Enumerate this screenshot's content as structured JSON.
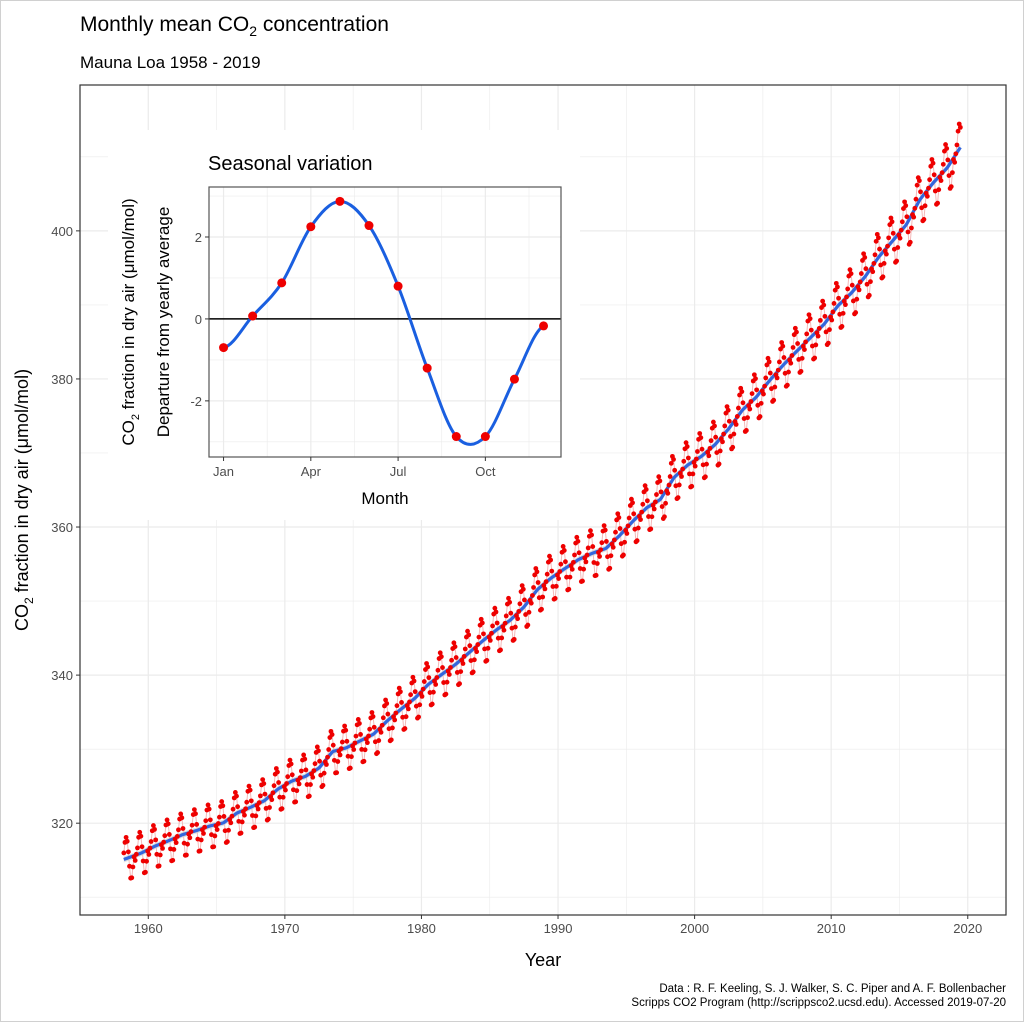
{
  "chart_data": [
    {
      "type": "scatter",
      "title": {
        "pre": "Monthly mean CO",
        "sub": "2",
        "post": " concentration"
      },
      "subtitle": "Mauna Loa 1958 - 2019",
      "xlabel": "Year",
      "ylabel": {
        "pre": "CO",
        "sub": "2",
        "post": " fraction in dry air (μmol/mol)"
      },
      "xlim": [
        1955,
        2022.8
      ],
      "ylim": [
        307.6,
        419.7
      ],
      "x_ticks": [
        1960,
        1970,
        1980,
        1990,
        2000,
        2010,
        2020
      ],
      "x_tick_labels": [
        "1960",
        "1970",
        "1980",
        "1990",
        "2000",
        "2010",
        "2020"
      ],
      "y_ticks": [
        320,
        340,
        360,
        380,
        400
      ],
      "y_tick_labels": [
        "320",
        "340",
        "360",
        "380",
        "400"
      ],
      "grid": true,
      "data_range": {
        "start": "1958-03",
        "end": "2019-06"
      },
      "annual_mean": {
        "years": [
          1958,
          1959,
          1960,
          1961,
          1962,
          1963,
          1964,
          1965,
          1966,
          1967,
          1968,
          1969,
          1970,
          1971,
          1972,
          1973,
          1974,
          1975,
          1976,
          1977,
          1978,
          1979,
          1980,
          1981,
          1982,
          1983,
          1984,
          1985,
          1986,
          1987,
          1988,
          1989,
          1990,
          1991,
          1992,
          1993,
          1994,
          1995,
          1996,
          1997,
          1998,
          1999,
          2000,
          2001,
          2002,
          2003,
          2004,
          2005,
          2006,
          2007,
          2008,
          2009,
          2010,
          2011,
          2012,
          2013,
          2014,
          2015,
          2016,
          2017,
          2018,
          2019
        ],
        "values": [
          315.3,
          315.98,
          316.91,
          317.64,
          318.45,
          318.99,
          319.62,
          320.04,
          321.38,
          322.16,
          323.04,
          324.62,
          325.68,
          326.32,
          327.45,
          329.68,
          330.18,
          331.11,
          332.04,
          333.83,
          335.4,
          336.84,
          338.75,
          340.11,
          341.45,
          343.05,
          344.65,
          346.12,
          347.42,
          349.19,
          351.57,
          353.12,
          354.39,
          355.61,
          356.45,
          357.1,
          358.83,
          360.82,
          362.61,
          363.73,
          366.7,
          368.38,
          369.55,
          371.14,
          373.28,
          375.8,
          377.52,
          379.8,
          381.9,
          383.79,
          385.6,
          387.43,
          389.9,
          391.65,
          393.85,
          396.52,
          398.65,
          400.83,
          404.24,
          406.55,
          408.52,
          411.4
        ]
      },
      "point_color": "#ee0000",
      "trend_color": "#3366dd",
      "caption": [
        "Data : R. F. Keeling, S. J. Walker, S. C. Piper and A. F. Bollenbacher",
        "Scripps CO2 Program (http://scrippsco2.ucsd.edu). Accessed 2019-07-20"
      ]
    },
    {
      "type": "line",
      "title": "Seasonal variation",
      "xlabel": "Month",
      "ylabel_line1": {
        "pre": "CO",
        "sub": "2",
        "post": " fraction in dry air (μmol/mol)"
      },
      "ylabel_line2": "Departure from yearly average",
      "months": [
        1,
        2,
        3,
        4,
        5,
        6,
        7,
        8,
        9,
        10,
        11,
        12
      ],
      "values": [
        -0.7,
        0.07,
        0.88,
        2.25,
        2.87,
        2.28,
        0.8,
        -1.2,
        -2.87,
        -2.87,
        -1.47,
        -0.17
      ],
      "xlim": [
        0.5,
        12.6
      ],
      "ylim": [
        -3.37,
        3.22
      ],
      "x_ticks": [
        1,
        4,
        7,
        10
      ],
      "x_tick_labels": [
        "Jan",
        "Apr",
        "Jul",
        "Oct"
      ],
      "y_ticks": [
        -2,
        0,
        2
      ],
      "y_tick_labels": [
        "-2",
        "0",
        "2"
      ],
      "grid": true,
      "reference_line": 0,
      "point_color": "#ee0000",
      "line_color": "#1a5fe0"
    }
  ]
}
